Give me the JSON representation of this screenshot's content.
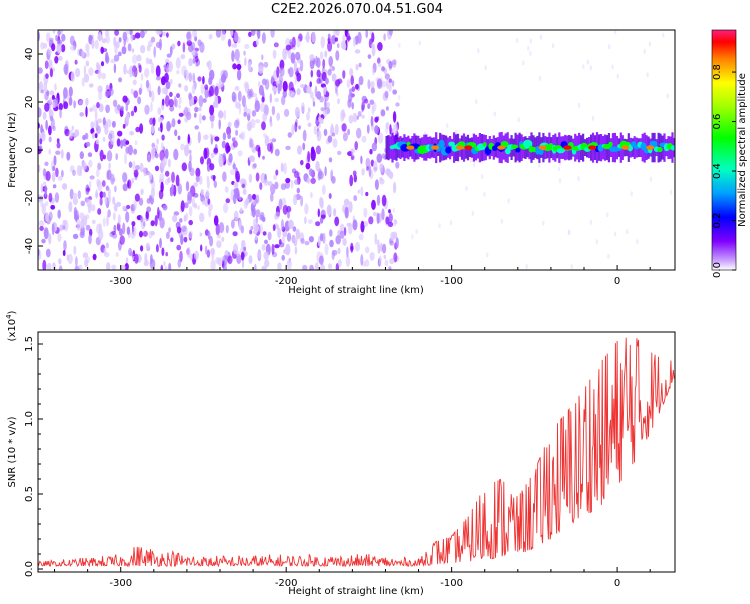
{
  "chart_data": [
    {
      "type": "heatmap",
      "title": "C2E2.2026.070.04.51.G04",
      "xlabel": "Height of straight line (km)",
      "ylabel": "Frequency (Hz)",
      "xlim": [
        -350,
        35
      ],
      "ylim": [
        -50,
        50
      ],
      "xticks": [
        -300,
        -200,
        -100,
        0
      ],
      "yticks": [
        40,
        20,
        0,
        -20,
        -40
      ],
      "colorbar": {
        "label": "Normalized spectral amplitude",
        "range": [
          0.0,
          0.97
        ],
        "ticks": [
          "0.0",
          "0.2",
          "0.4",
          "0.6",
          "0.8"
        ],
        "tick_values": [
          0.0,
          0.2,
          0.4,
          0.6,
          0.8
        ]
      },
      "features": {
        "noise_region_x": [
          -350,
          -140
        ],
        "signal_band_x": [
          -140,
          35
        ],
        "signal_center_hz": 1,
        "signal_halfwidth_hz": 5,
        "noise_mean_amplitude": 0.03,
        "peak_amplitude_positions_km": [
          -125,
          -110,
          -95,
          -90,
          -70,
          -45,
          -30,
          -15,
          5,
          20
        ]
      }
    },
    {
      "type": "line",
      "xlabel": "Height of straight line (km)",
      "ylabel": "SNR (10 * v/v)",
      "scale_label": "(x10^4)",
      "scale_base": "(x10",
      "scale_exp": "4",
      "scale_close": ")",
      "xlim": [
        -350,
        35
      ],
      "ylim": [
        -0.02,
        1.58
      ],
      "xticks": [
        -300,
        -200,
        -100,
        0
      ],
      "yticks": [
        "0.0",
        "0.5",
        "1.0",
        "1.5"
      ],
      "ytick_values": [
        0.0,
        0.5,
        1.0,
        1.5
      ],
      "color": "#ee3333",
      "envelope": {
        "x": [
          -350,
          -300,
          -290,
          -250,
          -200,
          -150,
          -120,
          -110,
          -100,
          -90,
          -80,
          -70,
          -60,
          -50,
          -40,
          -30,
          -20,
          -10,
          0,
          10,
          20,
          30,
          35
        ],
        "low": [
          0.02,
          0.02,
          0.02,
          0.02,
          0.02,
          0.02,
          0.02,
          0.03,
          0.04,
          0.05,
          0.06,
          0.08,
          0.1,
          0.13,
          0.2,
          0.28,
          0.35,
          0.42,
          0.55,
          0.7,
          0.9,
          1.15,
          1.28
        ],
        "high": [
          0.05,
          0.1,
          0.17,
          0.09,
          0.1,
          0.1,
          0.07,
          0.18,
          0.22,
          0.35,
          0.55,
          0.6,
          0.48,
          0.65,
          0.92,
          1.05,
          1.2,
          1.38,
          1.52,
          1.56,
          1.45,
          1.38,
          1.4
        ]
      }
    }
  ]
}
